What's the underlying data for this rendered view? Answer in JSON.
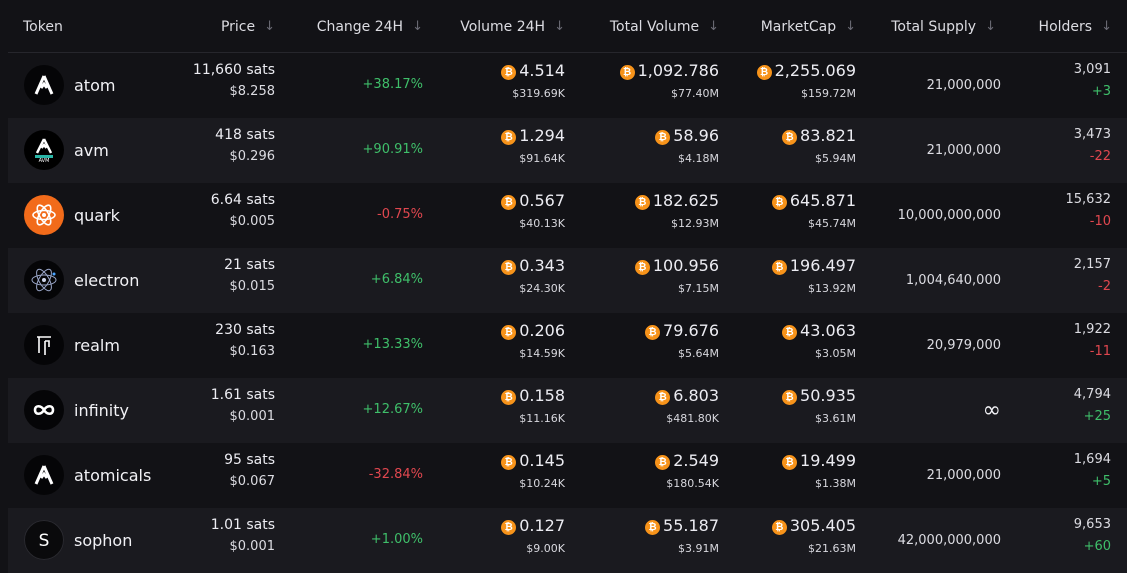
{
  "header": {
    "token": "Token",
    "price": "Price",
    "change": "Change 24H",
    "volume": "Volume 24H",
    "total_volume": "Total Volume",
    "marketcap": "MarketCap",
    "total_supply": "Total Supply",
    "holders": "Holders"
  },
  "btc_glyph": "₿",
  "rows": [
    {
      "name": "atom",
      "sats": "11,660 sats",
      "usd": "$8.258",
      "change": "+38.17%",
      "vol_btc": "4.514",
      "vol_usd": "$319.69K",
      "tvol_btc": "1,092.786",
      "tvol_usd": "$77.40M",
      "mc_btc": "2,255.069",
      "mc_usd": "$159.72M",
      "supply": "21,000,000",
      "holders": "3,091",
      "hchange": "+3"
    },
    {
      "name": "avm",
      "sats": "418 sats",
      "usd": "$0.296",
      "change": "+90.91%",
      "vol_btc": "1.294",
      "vol_usd": "$91.64K",
      "tvol_btc": "58.96",
      "tvol_usd": "$4.18M",
      "mc_btc": "83.821",
      "mc_usd": "$5.94M",
      "supply": "21,000,000",
      "holders": "3,473",
      "hchange": "-22",
      "logo_text": "AVM"
    },
    {
      "name": "quark",
      "sats": "6.64 sats",
      "usd": "$0.005",
      "change": "-0.75%",
      "vol_btc": "0.567",
      "vol_usd": "$40.13K",
      "tvol_btc": "182.625",
      "tvol_usd": "$12.93M",
      "mc_btc": "645.871",
      "mc_usd": "$45.74M",
      "supply": "10,000,000,000",
      "holders": "15,632",
      "hchange": "-10"
    },
    {
      "name": "electron",
      "sats": "21 sats",
      "usd": "$0.015",
      "change": "+6.84%",
      "vol_btc": "0.343",
      "vol_usd": "$24.30K",
      "tvol_btc": "100.956",
      "tvol_usd": "$7.15M",
      "mc_btc": "196.497",
      "mc_usd": "$13.92M",
      "supply": "1,004,640,000",
      "holders": "2,157",
      "hchange": "-2"
    },
    {
      "name": "realm",
      "sats": "230 sats",
      "usd": "$0.163",
      "change": "+13.33%",
      "vol_btc": "0.206",
      "vol_usd": "$14.59K",
      "tvol_btc": "79.676",
      "tvol_usd": "$5.64M",
      "mc_btc": "43.063",
      "mc_usd": "$3.05M",
      "supply": "20,979,000",
      "holders": "1,922",
      "hchange": "-11"
    },
    {
      "name": "infinity",
      "sats": "1.61 sats",
      "usd": "$0.001",
      "change": "+12.67%",
      "vol_btc": "0.158",
      "vol_usd": "$11.16K",
      "tvol_btc": "6.803",
      "tvol_usd": "$481.80K",
      "mc_btc": "50.935",
      "mc_usd": "$3.61M",
      "supply": "∞",
      "holders": "4,794",
      "hchange": "+25"
    },
    {
      "name": "atomicals",
      "sats": "95 sats",
      "usd": "$0.067",
      "change": "-32.84%",
      "vol_btc": "0.145",
      "vol_usd": "$10.24K",
      "tvol_btc": "2.549",
      "tvol_usd": "$180.54K",
      "mc_btc": "19.499",
      "mc_usd": "$1.38M",
      "supply": "21,000,000",
      "holders": "1,694",
      "hchange": "+5"
    },
    {
      "name": "sophon",
      "sats": "1.01 sats",
      "usd": "$0.001",
      "change": "+1.00%",
      "vol_btc": "0.127",
      "vol_usd": "$9.00K",
      "tvol_btc": "55.187",
      "tvol_usd": "$3.91M",
      "mc_btc": "305.405",
      "mc_usd": "$21.63M",
      "supply": "42,000,000,000",
      "holders": "9,653",
      "hchange": "+60",
      "logo_text": "S"
    }
  ],
  "colors": {
    "positive": "#3fbf6a",
    "negative": "#e0474f",
    "btc": "#f7931a",
    "quark": "#f26b1a"
  },
  "icons": [
    "atom-logo-icon",
    "avm-logo-icon",
    "quark-logo-icon",
    "electron-logo-icon",
    "realm-logo-icon",
    "infinity-logo-icon",
    "atomicals-logo-icon",
    "sophon-logo-icon",
    "sort-arrow-icon",
    "bitcoin-icon"
  ]
}
